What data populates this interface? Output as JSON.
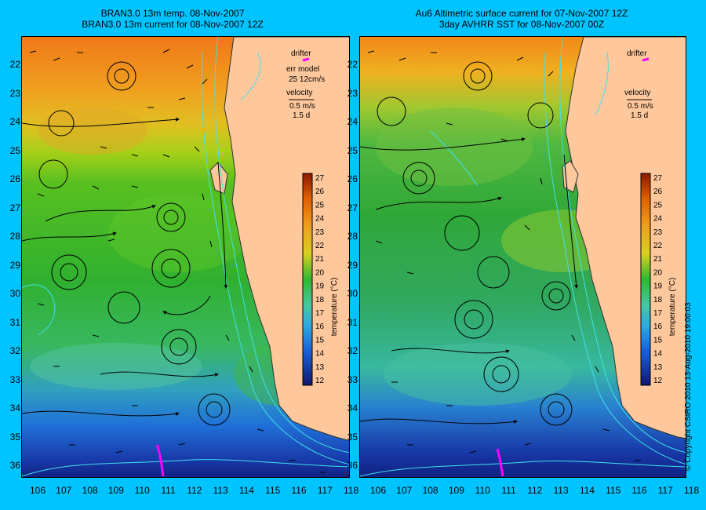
{
  "left_panel": {
    "title_line1": "BRAN3.0 13m temp. 08-Nov-2007",
    "title_line2": "BRAN3.0 13m current for 08-Nov-2007 12Z",
    "legend": {
      "drifter": "drifter",
      "model": "err model",
      "model_value": "25 12cm/s",
      "velocity": "velocity",
      "scale": "0.5 m/s",
      "duration": "1.5 d"
    }
  },
  "right_panel": {
    "title_line1": "Au6 Altimetric surface current for 07-Nov-2007 12Z",
    "title_line2": "3day AVHRR SST for 08-Nov-2007 00Z",
    "legend": {
      "drifter": "drifter",
      "velocity": "velocity",
      "scale": "0.5 m/s",
      "duration": "1.5 d"
    }
  },
  "colorbar": {
    "label": "temperature (°C)",
    "ticks": [
      "27",
      "26",
      "25",
      "24",
      "23",
      "22",
      "21",
      "20",
      "19",
      "18",
      "17",
      "16",
      "15",
      "14",
      "13",
      "12"
    ]
  },
  "latitudes": [
    "22",
    "23",
    "24",
    "25",
    "26",
    "27",
    "28",
    "29",
    "30",
    "31",
    "32",
    "33",
    "34",
    "35",
    "36"
  ],
  "longitudes": [
    "106",
    "107",
    "108",
    "109",
    "110",
    "111",
    "112",
    "113",
    "114",
    "115",
    "116",
    "117",
    "118"
  ],
  "copyright": "© Copyright CSIRO 2010   13-Aug-2010 19:00:03",
  "colors": {
    "background": "#00c4ff",
    "land": "#ffc89c",
    "drifter": "#ff00ff",
    "contour": "#40e0e8"
  }
}
